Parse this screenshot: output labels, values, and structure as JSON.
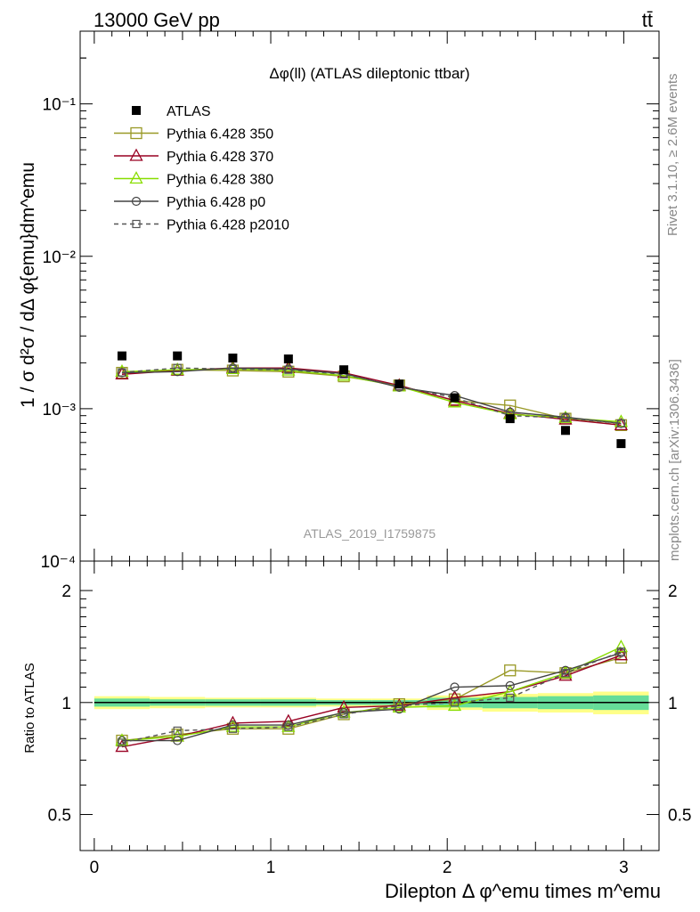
{
  "header": {
    "energy_label": "13000 GeV pp",
    "process_label": "tt̄"
  },
  "side": {
    "rivet_label": "Rivet 3.1.10, ≥ 2.6M events",
    "mcplots_label": "mcplots.cern.ch [arXiv:1306.3436]"
  },
  "chart_data": [
    {
      "type": "scatter",
      "title": "Δφ(ll) (ATLAS dileptonic ttbar)",
      "watermark": "ATLAS_2019_I1759875",
      "ylabel": "1 / σ  d²σ / dΔ φ{emu}dm^emu",
      "yscale": "log",
      "ylim": [
        0.0001,
        0.3
      ],
      "xlim": [
        -0.08,
        3.2
      ],
      "y_tick_labels": [
        "10⁻⁴",
        "10⁻³",
        "10⁻²",
        "10⁻¹"
      ],
      "legend_position": "top-left",
      "x": [
        0.157,
        0.471,
        0.785,
        1.1,
        1.414,
        1.728,
        2.042,
        2.356,
        2.67,
        2.985
      ],
      "series": [
        {
          "name": "ATLAS",
          "style": "data",
          "color": "#000000",
          "marker": "filled-square",
          "values": [
            0.00222,
            0.00222,
            0.00215,
            0.00212,
            0.0018,
            0.00145,
            0.00118,
            0.00086,
            0.00072,
            0.00059
          ]
        },
        {
          "name": "Pythia 6.428 350",
          "style": "solid",
          "color": "#999926",
          "marker": "open-square",
          "values": [
            0.00172,
            0.0018,
            0.00178,
            0.00175,
            0.00163,
            0.00142,
            0.00113,
            0.00105,
            0.00086,
            0.00078
          ]
        },
        {
          "name": "Pythia 6.428 370",
          "style": "solid",
          "color": "#990022",
          "marker": "open-triangle",
          "values": [
            0.00168,
            0.00178,
            0.00185,
            0.00185,
            0.00172,
            0.00142,
            0.00113,
            0.00093,
            0.00085,
            0.00078
          ]
        },
        {
          "name": "Pythia 6.428 380",
          "style": "solid",
          "color": "#88dd00",
          "marker": "open-triangle",
          "values": [
            0.00175,
            0.0018,
            0.00182,
            0.00178,
            0.00165,
            0.0014,
            0.0011,
            0.00092,
            0.00087,
            0.00082
          ]
        },
        {
          "name": "Pythia 6.428 p0",
          "style": "solid",
          "color": "#444444",
          "marker": "open-circle",
          "values": [
            0.00172,
            0.00175,
            0.00185,
            0.00182,
            0.0017,
            0.00138,
            0.00122,
            0.00095,
            0.00088,
            0.0008
          ]
        },
        {
          "name": "Pythia 6.428 p2010",
          "style": "dashed",
          "color": "#555555",
          "marker": "open-square-small",
          "values": [
            0.00173,
            0.00185,
            0.00182,
            0.0018,
            0.00168,
            0.0014,
            0.00118,
            0.0009,
            0.00087,
            0.0008
          ]
        }
      ]
    },
    {
      "type": "line",
      "ylabel": "Ratio to ATLAS",
      "yscale": "log",
      "ylim": [
        0.4,
        2.4
      ],
      "y_tick_labels": [
        "0.5",
        "1",
        "2"
      ],
      "x_tick_labels": [
        "0",
        "1",
        "2",
        "3"
      ],
      "xlabel": "Dilepton Δ φ^emu times m^emu",
      "reference_line": 1,
      "uncertainty_band": {
        "x_edges": [
          0.0,
          0.314,
          0.628,
          0.942,
          1.257,
          1.571,
          1.885,
          2.199,
          2.513,
          2.827,
          3.142
        ],
        "inner_halfwidth": [
          0.025,
          0.02,
          0.02,
          0.02,
          0.015,
          0.015,
          0.03,
          0.035,
          0.04,
          0.045
        ],
        "outer_halfwidth": [
          0.04,
          0.035,
          0.03,
          0.03,
          0.025,
          0.025,
          0.045,
          0.055,
          0.06,
          0.07
        ],
        "inner_color": "#66dd99",
        "outer_color": "#ffff88"
      },
      "x": [
        0.157,
        0.471,
        0.785,
        1.1,
        1.414,
        1.728,
        2.042,
        2.356,
        2.67,
        2.985
      ],
      "series": [
        {
          "name": "Pythia 6.428 350",
          "values": [
            0.79,
            0.82,
            0.85,
            0.85,
            0.93,
            0.99,
            1.02,
            1.22,
            1.2,
            1.32
          ]
        },
        {
          "name": "Pythia 6.428 370",
          "values": [
            0.76,
            0.81,
            0.88,
            0.89,
            0.97,
            0.98,
            1.03,
            1.07,
            1.18,
            1.34
          ]
        },
        {
          "name": "Pythia 6.428 380",
          "values": [
            0.79,
            0.81,
            0.86,
            0.86,
            0.94,
            0.97,
            0.98,
            1.07,
            1.2,
            1.41
          ]
        },
        {
          "name": "Pythia 6.428 p0",
          "values": [
            0.79,
            0.79,
            0.87,
            0.87,
            0.94,
            0.96,
            1.1,
            1.11,
            1.22,
            1.36
          ]
        },
        {
          "name": "Pythia 6.428 p2010",
          "values": [
            0.78,
            0.84,
            0.85,
            0.86,
            0.93,
            0.98,
            1.0,
            1.03,
            1.2,
            1.37
          ]
        }
      ]
    }
  ]
}
